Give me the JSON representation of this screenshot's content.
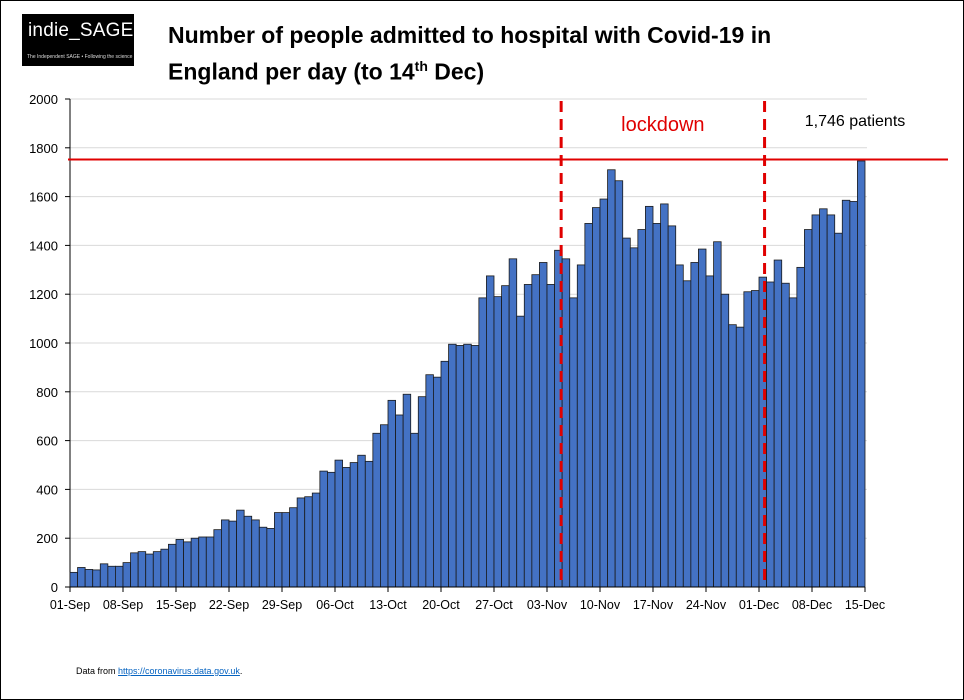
{
  "logo": {
    "text": "indie_SAGE",
    "tagline": "The Independent SAGE • Following the science"
  },
  "title": {
    "line1": "Number of people admitted to hospital with Covid-19 in",
    "line2_pre": "England per day (to 14",
    "line2_sup": "th",
    "line2_post": " Dec)"
  },
  "source": {
    "prefix": "Data from ",
    "link": "https://coronavirus.data.gov.uk",
    "suffix": "."
  },
  "colors": {
    "bar": "#4472c4",
    "bar_edge": "#1a1a1a",
    "threshold": "#e00000",
    "annotation": "#e00000"
  },
  "chart_data": {
    "type": "bar",
    "start_date": "01-Sep",
    "end_date": "14-Dec",
    "xticks": [
      "01-Sep",
      "08-Sep",
      "15-Sep",
      "22-Sep",
      "29-Sep",
      "06-Oct",
      "13-Oct",
      "20-Oct",
      "27-Oct",
      "03-Nov",
      "10-Nov",
      "17-Nov",
      "24-Nov",
      "01-Dec",
      "08-Dec",
      "15-Dec"
    ],
    "yticks": [
      0,
      200,
      400,
      600,
      800,
      1000,
      1200,
      1400,
      1600,
      1800,
      2000
    ],
    "ylim": [
      0,
      2000
    ],
    "grid": true,
    "values": [
      60,
      80,
      72,
      70,
      95,
      85,
      85,
      100,
      140,
      145,
      135,
      145,
      155,
      175,
      195,
      185,
      200,
      205,
      205,
      235,
      275,
      270,
      315,
      290,
      275,
      245,
      240,
      305,
      305,
      325,
      365,
      370,
      385,
      475,
      470,
      520,
      490,
      510,
      540,
      515,
      630,
      665,
      765,
      705,
      790,
      630,
      780,
      870,
      860,
      925,
      995,
      990,
      995,
      990,
      1185,
      1275,
      1190,
      1235,
      1345,
      1110,
      1240,
      1280,
      1330,
      1240,
      1380,
      1345,
      1185,
      1320,
      1490,
      1555,
      1590,
      1710,
      1665,
      1430,
      1390,
      1465,
      1560,
      1490,
      1570,
      1480,
      1320,
      1255,
      1330,
      1385,
      1275,
      1415,
      1200,
      1075,
      1065,
      1210,
      1215,
      1270,
      1250,
      1340,
      1245,
      1185,
      1310,
      1465,
      1525,
      1550,
      1525,
      1450,
      1585,
      1580,
      1746
    ],
    "threshold": {
      "value": 1746,
      "label": "1,746 patients"
    },
    "annotations": [
      {
        "label": "lockdown",
        "start": "05-Nov",
        "end": "02-Dec"
      }
    ]
  }
}
